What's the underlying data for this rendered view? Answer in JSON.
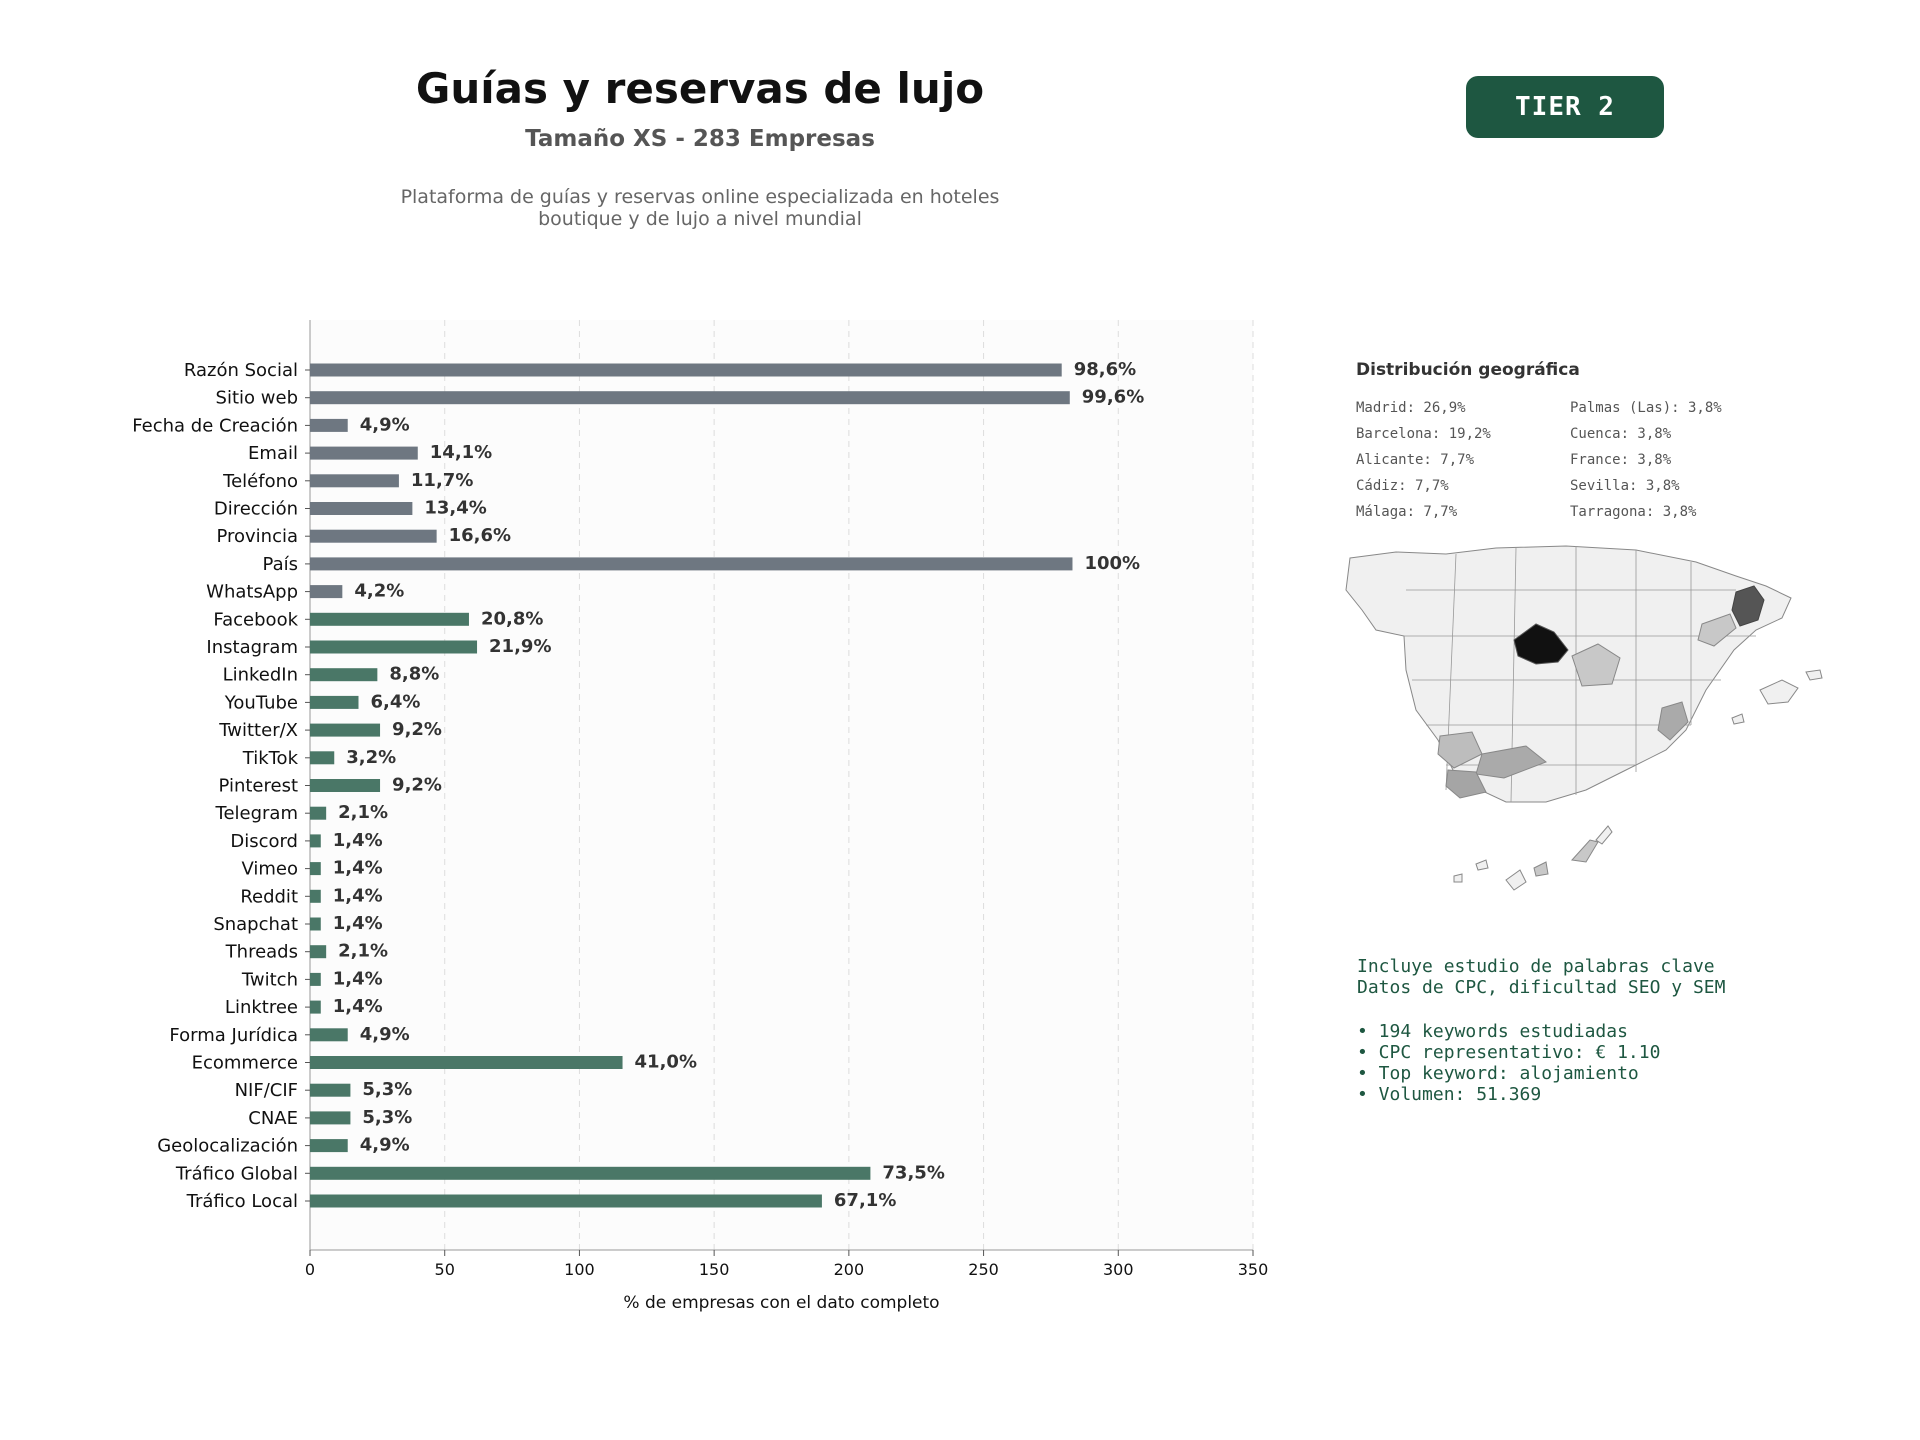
{
  "header": {
    "title": "Guías y reservas de lujo",
    "subtitle": "Tamaño XS - 283 Empresas",
    "description_line1": "Plataforma de guías y reservas online especializada en hoteles",
    "description_line2": "boutique y de lujo a nivel mundial",
    "tier": "TIER 2"
  },
  "colors": {
    "gray_bar": "#6e7781",
    "green_bar": "#4a7767",
    "accent": "#1e5741"
  },
  "chart_data": {
    "type": "bar",
    "orientation": "horizontal",
    "xlabel": "% de empresas con el dato completo",
    "xlim": [
      0,
      350
    ],
    "xticks": [
      0,
      50,
      100,
      150,
      200,
      250,
      300,
      350
    ],
    "grid": "vertical dashed",
    "categories": [
      "Razón Social",
      "Sitio web",
      "Fecha de Creación",
      "Email",
      "Teléfono",
      "Dirección",
      "Provincia",
      "País",
      "WhatsApp",
      "Facebook",
      "Instagram",
      "LinkedIn",
      "YouTube",
      "Twitter/X",
      "TikTok",
      "Pinterest",
      "Telegram",
      "Discord",
      "Vimeo",
      "Reddit",
      "Snapchat",
      "Threads",
      "Twitch",
      "Linktree",
      "Forma Jurídica",
      "Ecommerce",
      "NIF/CIF",
      "CNAE",
      "Geolocalización",
      "Tráfico Global",
      "Tráfico Local"
    ],
    "values": [
      279,
      282,
      14,
      40,
      33,
      38,
      47,
      283,
      12,
      59,
      62,
      25,
      18,
      26,
      9,
      26,
      6,
      4,
      4,
      4,
      4,
      6,
      4,
      4,
      14,
      116,
      15,
      15,
      14,
      208,
      190
    ],
    "labels": [
      "98,6%",
      "99,6%",
      "4,9%",
      "14,1%",
      "11,7%",
      "13,4%",
      "16,6%",
      "100%",
      "4,2%",
      "20,8%",
      "21,9%",
      "8,8%",
      "6,4%",
      "9,2%",
      "3,2%",
      "9,2%",
      "2,1%",
      "1,4%",
      "1,4%",
      "1,4%",
      "1,4%",
      "2,1%",
      "1,4%",
      "1,4%",
      "4,9%",
      "41,0%",
      "5,3%",
      "5,3%",
      "4,9%",
      "73,5%",
      "67,1%"
    ],
    "groups": [
      "gray",
      "gray",
      "gray",
      "gray",
      "gray",
      "gray",
      "gray",
      "gray",
      "gray",
      "green",
      "green",
      "green",
      "green",
      "green",
      "green",
      "green",
      "green",
      "green",
      "green",
      "green",
      "green",
      "green",
      "green",
      "green",
      "green",
      "green",
      "green",
      "green",
      "green",
      "green",
      "green"
    ]
  },
  "geo": {
    "title": "Distribución geográfica",
    "col1": [
      "Madrid: 26,9%",
      "Barcelona: 19,2%",
      "Alicante: 7,7%",
      "Cádiz: 7,7%",
      "Málaga: 7,7%"
    ],
    "col2": [
      "Palmas (Las): 3,8%",
      "Cuenca: 3,8%",
      "France: 3,8%",
      "Sevilla: 3,8%",
      "Tarragona: 3,8%"
    ]
  },
  "keywords": {
    "line1": "Incluye estudio de palabras clave",
    "line2": "Datos de CPC, dificultad SEO y SEM",
    "bullets": [
      "• 194 keywords estudiadas",
      "• CPC representativo: € 1.10",
      "• Top keyword: alojamiento",
      "• Volumen: 51.369"
    ]
  }
}
